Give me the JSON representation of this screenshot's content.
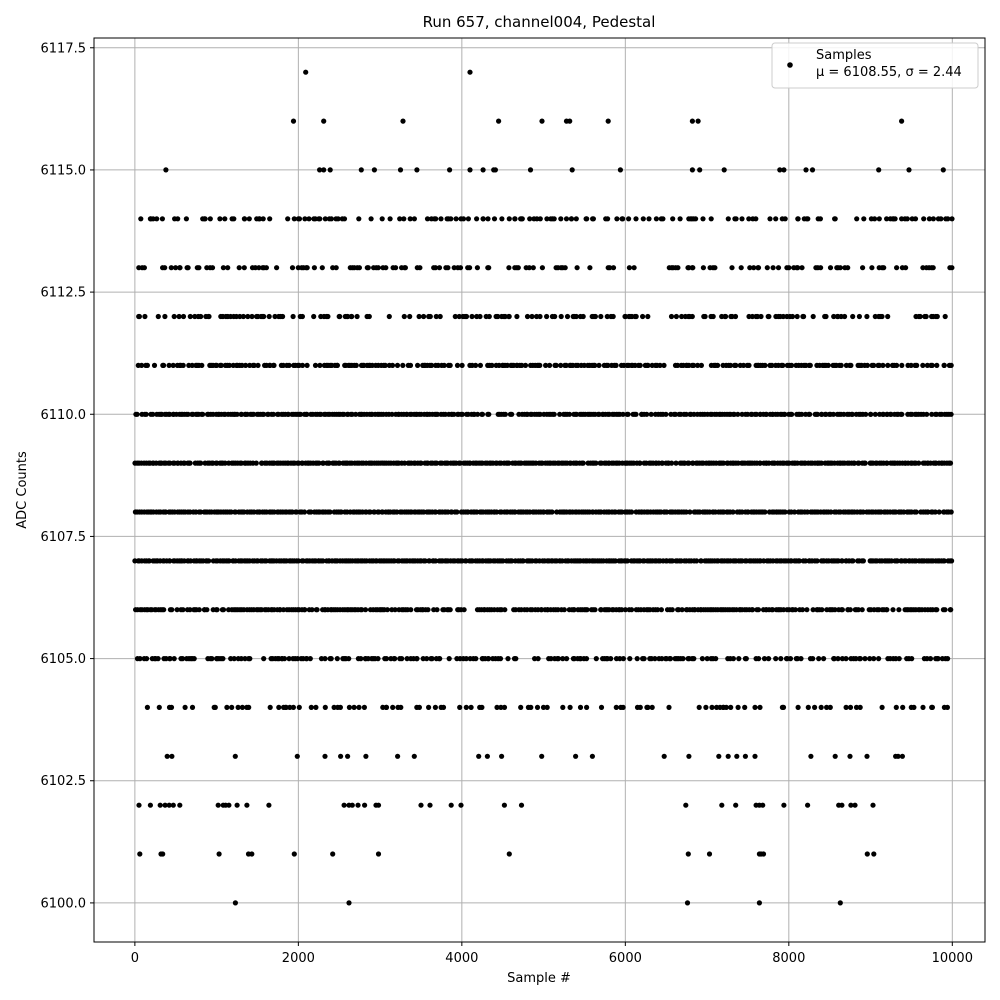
{
  "chart_data": {
    "type": "scatter",
    "title": "Run 657, channel004, Pedestal",
    "xlabel": "Sample #",
    "ylabel": "ADC Counts",
    "xlim": [
      -500,
      10400
    ],
    "ylim": [
      6099.2,
      6117.7
    ],
    "x_ticks": [
      0,
      2000,
      4000,
      6000,
      8000,
      10000
    ],
    "x_tick_labels": [
      "0",
      "2000",
      "4000",
      "6000",
      "8000",
      "10000"
    ],
    "y_ticks": [
      6100.0,
      6102.5,
      6105.0,
      6107.5,
      6110.0,
      6112.5,
      6115.0,
      6117.5
    ],
    "y_tick_labels": [
      "6100.0",
      "6102.5",
      "6105.0",
      "6107.5",
      "6110.0",
      "6112.5",
      "6115.0",
      "6117.5"
    ],
    "grid": true,
    "legend_position": "top-right",
    "marker_color": "#000000",
    "series": [
      {
        "name": "Samples",
        "stats_label": "μ = 6108.55, σ = 2.44",
        "sample_range": [
          0,
          9999
        ],
        "level_densities": {
          "6103": 0.09,
          "6104": 0.25,
          "6105": 0.55,
          "6106": 0.78,
          "6107": 0.95,
          "6108": 0.95,
          "6109": 0.95,
          "6110": 0.85,
          "6111": 0.65,
          "6112": 0.45,
          "6113": 0.3,
          "6114": 0.14
        },
        "points": [
          [
            1230,
            6100
          ],
          [
            2620,
            6100
          ],
          [
            6760,
            6100
          ],
          [
            7640,
            6100
          ],
          [
            8630,
            6100
          ],
          [
            60,
            6101
          ],
          [
            320,
            6101
          ],
          [
            340,
            6101
          ],
          [
            1030,
            6101
          ],
          [
            1390,
            6101
          ],
          [
            1430,
            6101
          ],
          [
            1950,
            6101
          ],
          [
            2420,
            6101
          ],
          [
            2980,
            6101
          ],
          [
            4580,
            6101
          ],
          [
            6770,
            6101
          ],
          [
            7030,
            6101
          ],
          [
            7640,
            6101
          ],
          [
            7660,
            6101
          ],
          [
            7690,
            6101
          ],
          [
            8960,
            6101
          ],
          [
            9040,
            6101
          ],
          [
            50,
            6102
          ],
          [
            190,
            6102
          ],
          [
            310,
            6102
          ],
          [
            370,
            6102
          ],
          [
            420,
            6102
          ],
          [
            470,
            6102
          ],
          [
            550,
            6102
          ],
          [
            1020,
            6102
          ],
          [
            1080,
            6102
          ],
          [
            1110,
            6102
          ],
          [
            1150,
            6102
          ],
          [
            1250,
            6102
          ],
          [
            1370,
            6102
          ],
          [
            1640,
            6102
          ],
          [
            2560,
            6102
          ],
          [
            2620,
            6102
          ],
          [
            2660,
            6102
          ],
          [
            2730,
            6102
          ],
          [
            2810,
            6102
          ],
          [
            2950,
            6102
          ],
          [
            2980,
            6102
          ],
          [
            3500,
            6102
          ],
          [
            3610,
            6102
          ],
          [
            3870,
            6102
          ],
          [
            3990,
            6102
          ],
          [
            4520,
            6102
          ],
          [
            4730,
            6102
          ],
          [
            6740,
            6102
          ],
          [
            7180,
            6102
          ],
          [
            7350,
            6102
          ],
          [
            7600,
            6102
          ],
          [
            7640,
            6102
          ],
          [
            7680,
            6102
          ],
          [
            7940,
            6102
          ],
          [
            8230,
            6102
          ],
          [
            8610,
            6102
          ],
          [
            8650,
            6102
          ],
          [
            8760,
            6102
          ],
          [
            8810,
            6102
          ],
          [
            9030,
            6102
          ],
          [
            190,
            6114
          ],
          [
            830,
            6114
          ],
          [
            850,
            6114
          ],
          [
            1040,
            6114
          ],
          [
            1100,
            6114
          ],
          [
            1190,
            6114
          ],
          [
            1340,
            6114
          ],
          [
            1400,
            6114
          ],
          [
            1520,
            6114
          ],
          [
            1570,
            6114
          ],
          [
            1650,
            6114
          ],
          [
            1870,
            6114
          ],
          [
            1950,
            6114
          ],
          [
            2000,
            6114
          ],
          [
            2130,
            6114
          ],
          [
            2190,
            6114
          ],
          [
            2250,
            6114
          ],
          [
            2330,
            6114
          ],
          [
            2380,
            6114
          ],
          [
            2460,
            6114
          ],
          [
            2740,
            6114
          ],
          [
            2890,
            6114
          ],
          [
            3240,
            6114
          ],
          [
            3290,
            6114
          ],
          [
            3420,
            6114
          ],
          [
            3580,
            6114
          ],
          [
            3680,
            6114
          ],
          [
            3820,
            6114
          ],
          [
            3930,
            6114
          ],
          [
            4020,
            6114
          ],
          [
            4080,
            6114
          ],
          [
            4180,
            6114
          ],
          [
            4260,
            6114
          ],
          [
            4320,
            6114
          ],
          [
            4400,
            6114
          ],
          [
            4490,
            6114
          ],
          [
            4580,
            6114
          ],
          [
            4650,
            6114
          ],
          [
            4740,
            6114
          ],
          [
            4830,
            6114
          ],
          [
            4960,
            6114
          ],
          [
            5040,
            6114
          ],
          [
            5130,
            6114
          ],
          [
            5210,
            6114
          ],
          [
            5280,
            6114
          ],
          [
            5340,
            6114
          ],
          [
            5400,
            6114
          ],
          [
            5520,
            6114
          ],
          [
            5600,
            6114
          ],
          [
            5760,
            6114
          ],
          [
            5960,
            6114
          ],
          [
            6040,
            6114
          ],
          [
            6130,
            6114
          ],
          [
            6220,
            6114
          ],
          [
            6290,
            6114
          ],
          [
            6380,
            6114
          ],
          [
            6440,
            6114
          ],
          [
            6580,
            6114
          ],
          [
            6670,
            6114
          ],
          [
            6800,
            6114
          ],
          [
            6860,
            6114
          ],
          [
            6950,
            6114
          ],
          [
            7050,
            6114
          ],
          [
            7260,
            6114
          ],
          [
            7340,
            6114
          ],
          [
            7510,
            6114
          ],
          [
            7560,
            6114
          ],
          [
            7770,
            6114
          ],
          [
            7840,
            6114
          ],
          [
            7920,
            6114
          ],
          [
            8110,
            6114
          ],
          [
            8190,
            6114
          ],
          [
            8360,
            6114
          ],
          [
            8560,
            6114
          ],
          [
            8830,
            6114
          ],
          [
            9010,
            6114
          ],
          [
            9050,
            6114
          ],
          [
            9300,
            6114
          ],
          [
            9380,
            6114
          ],
          [
            9450,
            6114
          ],
          [
            9510,
            6114
          ],
          [
            9550,
            6114
          ],
          [
            9720,
            6114
          ],
          [
            9830,
            6114
          ],
          [
            9920,
            6114
          ],
          [
            380,
            6115
          ],
          [
            2260,
            6115
          ],
          [
            2310,
            6115
          ],
          [
            2390,
            6115
          ],
          [
            2770,
            6115
          ],
          [
            2930,
            6115
          ],
          [
            3250,
            6115
          ],
          [
            3450,
            6115
          ],
          [
            3850,
            6115
          ],
          [
            4100,
            6115
          ],
          [
            4260,
            6115
          ],
          [
            4390,
            6115
          ],
          [
            4410,
            6115
          ],
          [
            4840,
            6115
          ],
          [
            5350,
            6115
          ],
          [
            5940,
            6115
          ],
          [
            6820,
            6115
          ],
          [
            6910,
            6115
          ],
          [
            7210,
            6115
          ],
          [
            7890,
            6115
          ],
          [
            7940,
            6115
          ],
          [
            8210,
            6115
          ],
          [
            8290,
            6115
          ],
          [
            9100,
            6115
          ],
          [
            9470,
            6115
          ],
          [
            9890,
            6115
          ],
          [
            1940,
            6116
          ],
          [
            2310,
            6116
          ],
          [
            3280,
            6116
          ],
          [
            4450,
            6116
          ],
          [
            4980,
            6116
          ],
          [
            5280,
            6116
          ],
          [
            5320,
            6116
          ],
          [
            5790,
            6116
          ],
          [
            6820,
            6116
          ],
          [
            6890,
            6116
          ],
          [
            9380,
            6116
          ],
          [
            2090,
            6117
          ],
          [
            4100,
            6117
          ]
        ]
      }
    ]
  }
}
